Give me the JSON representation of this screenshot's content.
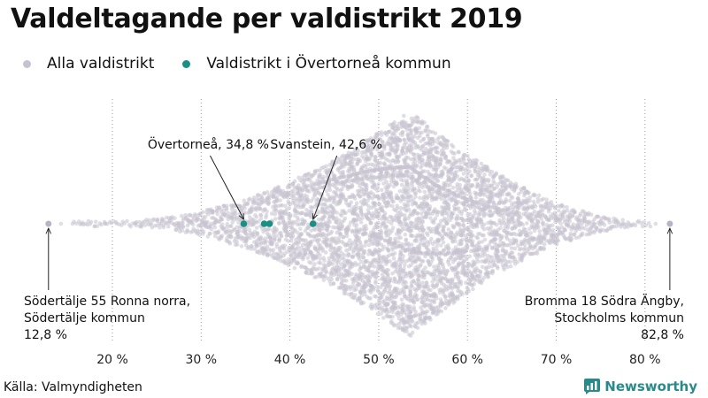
{
  "title": "Valdeltagande per valdistrikt 2019",
  "legend": {
    "all": {
      "label": "Alla valdistrikt",
      "color": "#c6c3cf"
    },
    "highlight": {
      "label": "Valdistrikt i Övertorneå kommun",
      "color": "#1a8f84"
    }
  },
  "source": "Källa: Valmyndigheten",
  "brand": "Newsworthy",
  "chart_data": {
    "type": "scatter",
    "subtype": "beeswarm",
    "title": "Valdeltagande per valdistrikt 2019",
    "xlabel": "",
    "ylabel": "",
    "xlim": [
      10,
      86
    ],
    "x_ticks": [
      20,
      30,
      40,
      50,
      60,
      70,
      80
    ],
    "tick_labels": [
      "20 %",
      "30 %",
      "40 %",
      "50 %",
      "60 %",
      "70 %",
      "80 %"
    ],
    "grid": "vertical dotted",
    "series": [
      {
        "name": "Alla valdistrikt",
        "color": "#c6c3cf",
        "min": 12.8,
        "max": 82.8,
        "peak": 53.5
      },
      {
        "name": "Valdistrikt i Övertorneå kommun",
        "color": "#1a8f84",
        "values": [
          34.8,
          37.1,
          37.7,
          42.6
        ]
      }
    ],
    "annotations": [
      {
        "id": "overtornea",
        "x": 34.8,
        "text": "Övertorneå, 34,8 %"
      },
      {
        "id": "svanstein",
        "x": 42.6,
        "text": "Svanstein, 42,6 %"
      },
      {
        "id": "min",
        "x": 12.8,
        "lines": [
          "Södertälje 55 Ronna norra,",
          "Södertälje kommun",
          "12,8 %"
        ]
      },
      {
        "id": "max",
        "x": 82.8,
        "lines": [
          "Bromma 18 Södra Ängby,",
          "Stockholms kommun",
          "82,8 %"
        ]
      }
    ]
  }
}
